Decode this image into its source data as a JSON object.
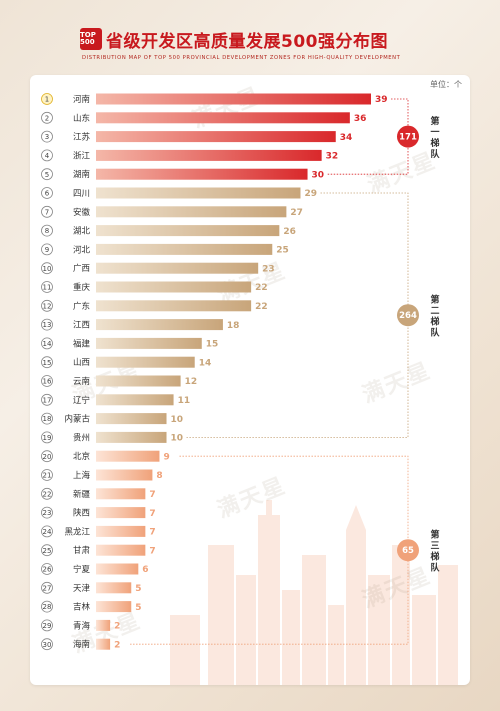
{
  "header": {
    "logo_text": "TOP 500",
    "title": "省级开发区高质量发展500强分布图",
    "subtitle": "DISTRIBUTION MAP OF TOP 500 PROVINCIAL DEVELOPMENT ZONES FOR HIGH-QUALITY DEVELOPMENT"
  },
  "unit_label": "单位：个",
  "watermark_text": "满天星",
  "colors": {
    "red": "#d9282b",
    "red_light": "#f4b7a8",
    "gold": "#c8a57a",
    "gold_light": "#efe2cf",
    "orange": "#f0a27a",
    "orange_light": "#fde4d6"
  },
  "chart_data": {
    "type": "bar",
    "orientation": "horizontal",
    "categories": [
      "河南",
      "山东",
      "江苏",
      "浙江",
      "湖南",
      "四川",
      "安徽",
      "湖北",
      "河北",
      "广西",
      "重庆",
      "广东",
      "江西",
      "福建",
      "山西",
      "云南",
      "辽宁",
      "内蒙古",
      "贵州",
      "北京",
      "上海",
      "新疆",
      "陕西",
      "黑龙江",
      "甘肃",
      "宁夏",
      "天津",
      "吉林",
      "青海",
      "海南"
    ],
    "ranks": [
      "1",
      "2",
      "3",
      "4",
      "5",
      "6",
      "7",
      "8",
      "9",
      "10",
      "11",
      "12",
      "13",
      "14",
      "15",
      "16",
      "17",
      "18",
      "19",
      "20",
      "21",
      "22",
      "23",
      "24",
      "25",
      "26",
      "27",
      "28",
      "29",
      "30"
    ],
    "values": [
      39,
      36,
      34,
      32,
      30,
      29,
      27,
      26,
      25,
      23,
      22,
      22,
      18,
      15,
      14,
      12,
      11,
      10,
      10,
      9,
      8,
      7,
      7,
      7,
      7,
      6,
      5,
      5,
      2,
      2
    ],
    "tiers": [
      {
        "label": "第一梯队",
        "total": "171",
        "start": 0,
        "end": 4,
        "color": "red"
      },
      {
        "label": "第二梯队",
        "total": "264",
        "start": 5,
        "end": 18,
        "color": "gold"
      },
      {
        "label": "第三梯队",
        "total": "65",
        "start": 19,
        "end": 29,
        "color": "orange"
      }
    ],
    "xlim": [
      0,
      39
    ]
  }
}
